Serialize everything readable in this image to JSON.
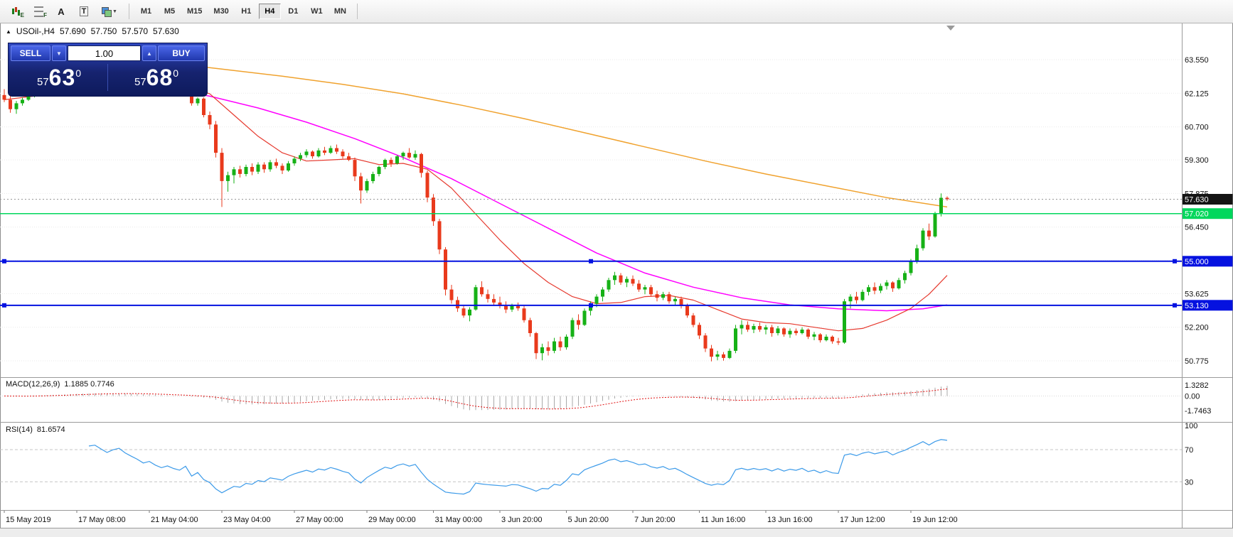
{
  "toolbar": {
    "tools": [
      {
        "name": "expert-advisors",
        "badge": "E"
      },
      {
        "name": "grid-settings",
        "badge": "F"
      },
      {
        "name": "text-annotation",
        "badge": "A"
      },
      {
        "name": "text-box",
        "badge": "T"
      },
      {
        "name": "chart-styles",
        "badge": ""
      }
    ],
    "timeframes": [
      "M1",
      "M5",
      "M15",
      "M30",
      "H1",
      "H4",
      "D1",
      "W1",
      "MN"
    ],
    "active": "H4"
  },
  "header": {
    "symbol": "USOil-,H4",
    "open": "57.690",
    "high": "57.750",
    "low": "57.570",
    "close": "57.630"
  },
  "trade_panel": {
    "sell_label": "SELL",
    "buy_label": "BUY",
    "volume": "1.00",
    "bid": {
      "small": "57",
      "big": "63",
      "sup": "0"
    },
    "ask": {
      "small": "57",
      "big": "68",
      "sup": "0"
    }
  },
  "chart_data": {
    "type": "candlestick",
    "symbol": "USOil-",
    "timeframe": "H4",
    "up_color": "#16B116",
    "down_color": "#E93A1C",
    "candles": [
      [
        62.05,
        62.3,
        61.75,
        61.85
      ],
      [
        61.85,
        62.0,
        61.3,
        61.45
      ],
      [
        61.45,
        61.8,
        61.25,
        61.7
      ],
      [
        61.7,
        61.95,
        61.6,
        61.85
      ],
      [
        61.85,
        62.1,
        61.8,
        62.0
      ],
      [
        62.0,
        62.3,
        61.95,
        62.2
      ],
      [
        62.2,
        62.45,
        62.1,
        62.35
      ],
      [
        62.35,
        62.6,
        62.25,
        62.5
      ],
      [
        62.5,
        62.6,
        62.3,
        62.4
      ],
      [
        62.4,
        62.7,
        62.35,
        62.6
      ],
      [
        62.6,
        62.85,
        62.5,
        62.75
      ],
      [
        62.75,
        63.0,
        62.65,
        62.9
      ],
      [
        62.9,
        63.1,
        62.8,
        63.0
      ],
      [
        63.0,
        63.1,
        62.75,
        62.85
      ],
      [
        62.85,
        63.2,
        62.8,
        63.1
      ],
      [
        63.1,
        63.3,
        63.0,
        63.2
      ],
      [
        63.2,
        63.25,
        62.95,
        63.05
      ],
      [
        63.05,
        63.15,
        62.8,
        62.9
      ],
      [
        62.9,
        63.25,
        62.85,
        63.15
      ],
      [
        63.15,
        63.4,
        63.05,
        63.3
      ],
      [
        63.3,
        63.45,
        63.0,
        63.1
      ],
      [
        63.1,
        63.2,
        62.85,
        62.95
      ],
      [
        62.95,
        63.05,
        62.7,
        62.8
      ],
      [
        62.8,
        62.9,
        62.5,
        62.6
      ],
      [
        62.6,
        62.85,
        62.55,
        62.7
      ],
      [
        62.7,
        62.8,
        62.4,
        62.5
      ],
      [
        62.5,
        62.65,
        62.3,
        62.35
      ],
      [
        62.35,
        62.6,
        62.3,
        62.45
      ],
      [
        62.45,
        62.55,
        62.2,
        62.3
      ],
      [
        62.3,
        62.45,
        62.15,
        62.2
      ],
      [
        62.2,
        62.45,
        62.1,
        62.4
      ],
      [
        62.4,
        62.5,
        61.6,
        61.7
      ],
      [
        61.7,
        61.95,
        61.6,
        61.9
      ],
      [
        61.9,
        61.95,
        61.1,
        61.2
      ],
      [
        61.2,
        61.35,
        60.6,
        60.8
      ],
      [
        60.8,
        60.95,
        59.4,
        59.6
      ],
      [
        59.6,
        59.8,
        57.3,
        58.4
      ],
      [
        58.4,
        58.8,
        57.95,
        58.65
      ],
      [
        58.65,
        59.0,
        58.3,
        58.9
      ],
      [
        58.9,
        59.05,
        58.55,
        58.7
      ],
      [
        58.7,
        59.1,
        58.6,
        59.0
      ],
      [
        59.0,
        59.15,
        58.65,
        58.8
      ],
      [
        58.8,
        59.2,
        58.7,
        59.1
      ],
      [
        59.1,
        59.2,
        58.75,
        58.9
      ],
      [
        58.9,
        59.3,
        58.8,
        59.2
      ],
      [
        59.2,
        59.35,
        58.95,
        59.05
      ],
      [
        59.05,
        59.15,
        58.7,
        58.85
      ],
      [
        58.85,
        59.25,
        58.8,
        59.15
      ],
      [
        59.15,
        59.45,
        59.05,
        59.35
      ],
      [
        59.35,
        59.6,
        59.25,
        59.5
      ],
      [
        59.5,
        59.75,
        59.4,
        59.65
      ],
      [
        59.65,
        59.7,
        59.35,
        59.45
      ],
      [
        59.45,
        59.8,
        59.4,
        59.7
      ],
      [
        59.7,
        59.85,
        59.5,
        59.6
      ],
      [
        59.6,
        59.9,
        59.55,
        59.8
      ],
      [
        59.8,
        59.95,
        59.55,
        59.65
      ],
      [
        59.65,
        59.75,
        59.35,
        59.45
      ],
      [
        59.45,
        59.6,
        59.25,
        59.3
      ],
      [
        59.3,
        59.4,
        58.4,
        58.6
      ],
      [
        58.6,
        58.75,
        57.45,
        58.0
      ],
      [
        58.0,
        58.5,
        57.9,
        58.4
      ],
      [
        58.4,
        58.8,
        58.3,
        58.7
      ],
      [
        58.7,
        59.05,
        58.6,
        59.0
      ],
      [
        59.0,
        59.35,
        58.9,
        59.3
      ],
      [
        59.3,
        59.4,
        59.0,
        59.15
      ],
      [
        59.15,
        59.5,
        59.1,
        59.45
      ],
      [
        59.45,
        59.65,
        59.3,
        59.6
      ],
      [
        59.6,
        59.8,
        59.35,
        59.4
      ],
      [
        59.4,
        59.7,
        59.3,
        59.55
      ],
      [
        59.55,
        59.6,
        58.55,
        58.75
      ],
      [
        58.75,
        58.85,
        57.5,
        57.7
      ],
      [
        57.7,
        57.85,
        56.5,
        56.7
      ],
      [
        56.7,
        56.8,
        55.3,
        55.5
      ],
      [
        55.5,
        55.6,
        53.55,
        53.8
      ],
      [
        53.8,
        54.0,
        53.2,
        53.35
      ],
      [
        53.35,
        53.5,
        52.85,
        53.0
      ],
      [
        53.0,
        53.15,
        52.6,
        52.7
      ],
      [
        52.7,
        53.05,
        52.45,
        52.95
      ],
      [
        52.95,
        54.0,
        52.9,
        53.9
      ],
      [
        53.9,
        54.15,
        53.5,
        53.6
      ],
      [
        53.6,
        53.8,
        53.25,
        53.4
      ],
      [
        53.4,
        53.6,
        53.1,
        53.25
      ],
      [
        53.25,
        53.5,
        53.0,
        53.1
      ],
      [
        53.1,
        53.3,
        52.8,
        52.95
      ],
      [
        52.95,
        53.2,
        52.85,
        53.1
      ],
      [
        53.1,
        53.25,
        52.9,
        53.0
      ],
      [
        53.0,
        53.1,
        52.4,
        52.5
      ],
      [
        52.5,
        52.6,
        51.8,
        51.95
      ],
      [
        51.95,
        52.0,
        50.85,
        51.1
      ],
      [
        51.1,
        51.5,
        50.8,
        51.35
      ],
      [
        51.35,
        51.6,
        51.0,
        51.2
      ],
      [
        51.2,
        51.75,
        51.1,
        51.6
      ],
      [
        51.6,
        51.8,
        51.2,
        51.35
      ],
      [
        51.35,
        51.9,
        51.25,
        51.8
      ],
      [
        51.8,
        52.6,
        51.7,
        52.5
      ],
      [
        52.5,
        52.75,
        52.1,
        52.3
      ],
      [
        52.3,
        53.0,
        52.25,
        52.9
      ],
      [
        52.9,
        53.3,
        52.7,
        53.2
      ],
      [
        53.2,
        53.6,
        53.05,
        53.5
      ],
      [
        53.5,
        53.9,
        53.3,
        53.8
      ],
      [
        53.8,
        54.3,
        53.7,
        54.2
      ],
      [
        54.2,
        54.55,
        54.0,
        54.4
      ],
      [
        54.4,
        54.5,
        54.0,
        54.1
      ],
      [
        54.1,
        54.35,
        53.9,
        54.25
      ],
      [
        54.25,
        54.4,
        53.95,
        54.05
      ],
      [
        54.05,
        54.2,
        53.7,
        53.8
      ],
      [
        53.8,
        54.0,
        53.6,
        53.9
      ],
      [
        53.9,
        54.0,
        53.5,
        53.6
      ],
      [
        53.6,
        53.75,
        53.3,
        53.45
      ],
      [
        53.45,
        53.7,
        53.35,
        53.6
      ],
      [
        53.6,
        53.7,
        53.2,
        53.3
      ],
      [
        53.3,
        53.5,
        53.15,
        53.4
      ],
      [
        53.4,
        53.5,
        53.0,
        53.1
      ],
      [
        53.1,
        53.2,
        52.6,
        52.7
      ],
      [
        52.7,
        52.8,
        52.2,
        52.3
      ],
      [
        52.3,
        52.4,
        51.7,
        51.85
      ],
      [
        51.85,
        51.95,
        51.15,
        51.3
      ],
      [
        51.3,
        51.45,
        50.75,
        50.95
      ],
      [
        50.95,
        51.2,
        50.8,
        51.05
      ],
      [
        51.05,
        51.15,
        50.78,
        50.9
      ],
      [
        50.9,
        51.3,
        50.85,
        51.2
      ],
      [
        51.2,
        52.3,
        51.1,
        52.15
      ],
      [
        52.15,
        52.5,
        51.9,
        52.3
      ],
      [
        52.3,
        52.45,
        52.0,
        52.1
      ],
      [
        52.1,
        52.35,
        51.95,
        52.25
      ],
      [
        52.25,
        52.4,
        52.0,
        52.1
      ],
      [
        52.1,
        52.3,
        51.9,
        52.2
      ],
      [
        52.2,
        52.3,
        51.8,
        51.95
      ],
      [
        51.95,
        52.25,
        51.85,
        52.15
      ],
      [
        52.15,
        52.2,
        51.8,
        51.9
      ],
      [
        51.9,
        52.15,
        51.75,
        52.05
      ],
      [
        52.05,
        52.15,
        51.85,
        51.95
      ],
      [
        51.95,
        52.2,
        51.9,
        52.1
      ],
      [
        52.1,
        52.15,
        51.7,
        51.8
      ],
      [
        51.8,
        52.0,
        51.65,
        51.9
      ],
      [
        51.9,
        51.95,
        51.55,
        51.65
      ],
      [
        51.65,
        51.9,
        51.6,
        51.8
      ],
      [
        51.8,
        51.85,
        51.5,
        51.6
      ],
      [
        51.6,
        51.75,
        51.45,
        51.55
      ],
      [
        51.55,
        53.4,
        51.5,
        53.3
      ],
      [
        53.3,
        53.6,
        53.0,
        53.5
      ],
      [
        53.5,
        53.7,
        53.2,
        53.35
      ],
      [
        53.35,
        53.8,
        53.3,
        53.7
      ],
      [
        53.7,
        54.0,
        53.55,
        53.9
      ],
      [
        53.9,
        54.1,
        53.6,
        53.75
      ],
      [
        53.75,
        54.05,
        53.65,
        53.95
      ],
      [
        53.95,
        54.2,
        53.8,
        54.1
      ],
      [
        54.1,
        54.15,
        53.7,
        53.85
      ],
      [
        53.85,
        54.3,
        53.8,
        54.2
      ],
      [
        54.2,
        54.6,
        54.05,
        54.5
      ],
      [
        54.5,
        55.1,
        54.4,
        55.0
      ],
      [
        55.0,
        55.7,
        54.9,
        55.55
      ],
      [
        55.55,
        56.4,
        55.45,
        56.3
      ],
      [
        56.3,
        56.6,
        55.9,
        56.05
      ],
      [
        56.05,
        57.1,
        56.0,
        57.0
      ],
      [
        57.0,
        57.88,
        56.9,
        57.69
      ],
      [
        57.69,
        57.75,
        57.57,
        57.63
      ]
    ],
    "overlays": [
      {
        "name": "ma-slow-orange",
        "color": "#F0A22E",
        "width": 1.5,
        "points": [
          [
            26,
            63.45
          ],
          [
            36,
            63.15
          ],
          [
            46,
            62.85
          ],
          [
            56,
            62.5
          ],
          [
            66,
            62.1
          ],
          [
            76,
            61.6
          ],
          [
            86,
            61.05
          ],
          [
            96,
            60.45
          ],
          [
            106,
            59.85
          ],
          [
            116,
            59.25
          ],
          [
            126,
            58.7
          ],
          [
            136,
            58.2
          ],
          [
            146,
            57.7
          ],
          [
            156,
            57.3
          ]
        ]
      },
      {
        "name": "ma-mid-magenta",
        "color": "#FF00FF",
        "width": 1.5,
        "points": [
          [
            26,
            62.35
          ],
          [
            34,
            62.0
          ],
          [
            42,
            61.5
          ],
          [
            50,
            60.9
          ],
          [
            58,
            60.2
          ],
          [
            66,
            59.4
          ],
          [
            74,
            58.5
          ],
          [
            82,
            57.45
          ],
          [
            90,
            56.4
          ],
          [
            98,
            55.35
          ],
          [
            106,
            54.5
          ],
          [
            114,
            53.9
          ],
          [
            122,
            53.45
          ],
          [
            130,
            53.15
          ],
          [
            138,
            52.98
          ],
          [
            146,
            52.9
          ],
          [
            152,
            52.98
          ],
          [
            156,
            53.15
          ]
        ]
      },
      {
        "name": "ma-fast-red",
        "color": "#E6392E",
        "width": 1.2,
        "points": [
          [
            0,
            61.85
          ],
          [
            8,
            62.1
          ],
          [
            16,
            62.6
          ],
          [
            24,
            62.7
          ],
          [
            30,
            62.45
          ],
          [
            34,
            62.1
          ],
          [
            38,
            61.2
          ],
          [
            42,
            60.3
          ],
          [
            46,
            59.6
          ],
          [
            50,
            59.25
          ],
          [
            54,
            59.3
          ],
          [
            58,
            59.35
          ],
          [
            62,
            59.1
          ],
          [
            66,
            59.15
          ],
          [
            70,
            58.9
          ],
          [
            74,
            58.1
          ],
          [
            78,
            57.0
          ],
          [
            82,
            55.9
          ],
          [
            86,
            54.9
          ],
          [
            90,
            54.1
          ],
          [
            94,
            53.5
          ],
          [
            98,
            53.2
          ],
          [
            102,
            53.25
          ],
          [
            106,
            53.5
          ],
          [
            110,
            53.55
          ],
          [
            114,
            53.35
          ],
          [
            118,
            52.95
          ],
          [
            122,
            52.55
          ],
          [
            126,
            52.4
          ],
          [
            130,
            52.35
          ],
          [
            134,
            52.2
          ],
          [
            138,
            52.05
          ],
          [
            142,
            52.15
          ],
          [
            146,
            52.5
          ],
          [
            150,
            53.0
          ],
          [
            153,
            53.6
          ],
          [
            156,
            54.4
          ]
        ]
      }
    ],
    "hlines": [
      {
        "price": 57.02,
        "label": "57.020",
        "color": "#00D75C",
        "width": 1.5,
        "handles": false
      },
      {
        "price": 55.0,
        "label": "55.000",
        "color": "#0512E0",
        "width": 2,
        "handles": true
      },
      {
        "price": 53.13,
        "label": "53.130",
        "color": "#0512E0",
        "width": 2,
        "handles": true
      }
    ],
    "price_line": {
      "price": 57.63,
      "label": "57.630",
      "badge_color": "#141414",
      "line_color": "#999999"
    },
    "price_axis": [
      {
        "v": 63.55,
        "t": "63.550"
      },
      {
        "v": 62.125,
        "t": "62.125"
      },
      {
        "v": 60.7,
        "t": "60.700"
      },
      {
        "v": 59.3,
        "t": "59.300"
      },
      {
        "v": 57.875,
        "t": "57.875"
      },
      {
        "v": 56.45,
        "t": "56.450"
      },
      {
        "v": 55.025,
        "t": "55.025"
      },
      {
        "v": 53.625,
        "t": "53.625"
      },
      {
        "v": 52.2,
        "t": "52.200"
      },
      {
        "v": 50.775,
        "t": "50.775"
      }
    ],
    "time_axis": [
      {
        "i": 0,
        "label": "15 May 2019"
      },
      {
        "i": 12,
        "label": "17 May 08:00"
      },
      {
        "i": 24,
        "label": "21 May 04:00"
      },
      {
        "i": 36,
        "label": "23 May 04:00"
      },
      {
        "i": 48,
        "label": "27 May 00:00"
      },
      {
        "i": 60,
        "label": "29 May 00:00"
      },
      {
        "i": 71,
        "label": "31 May 00:00"
      },
      {
        "i": 82,
        "label": "3 Jun 20:00"
      },
      {
        "i": 93,
        "label": "5 Jun 20:00"
      },
      {
        "i": 104,
        "label": "7 Jun 20:00"
      },
      {
        "i": 115,
        "label": "11 Jun 16:00"
      },
      {
        "i": 126,
        "label": "13 Jun 16:00"
      },
      {
        "i": 138,
        "label": "17 Jun 12:00"
      },
      {
        "i": 150,
        "label": "19 Jun 12:00"
      }
    ],
    "macd": {
      "name": "MACD(12,26,9)",
      "values": "1.1885 0.7746",
      "histogram_color": "#A8A8A8",
      "signal_color": "#E01010",
      "axis": [
        {
          "v": 1.3282,
          "t": "1.3282"
        },
        {
          "v": 0,
          "t": "0.00"
        },
        {
          "v": -1.7463,
          "t": "-1.7463"
        }
      ]
    },
    "rsi": {
      "name": "RSI(14)",
      "value": "81.6574",
      "color": "#3D9BE9",
      "levels": [
        70,
        30
      ],
      "axis": [
        {
          "v": 100,
          "t": "100"
        },
        {
          "v": 70,
          "t": "70"
        },
        {
          "v": 30,
          "t": "30"
        }
      ]
    }
  }
}
